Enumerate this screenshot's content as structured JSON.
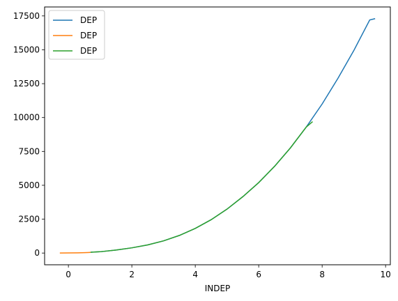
{
  "chart_data": {
    "type": "line",
    "title": "",
    "xlabel": "INDEP",
    "ylabel": "",
    "xlim": [
      -0.75,
      10.15
    ],
    "ylim": [
      -865,
      18160
    ],
    "xticks": [
      0,
      2,
      4,
      6,
      8,
      10
    ],
    "yticks": [
      0,
      2500,
      5000,
      7500,
      10000,
      12500,
      15000,
      17500
    ],
    "grid": false,
    "legend_position": "top-left",
    "series": [
      {
        "name": "DEP",
        "color": "#1f77b4",
        "x": [
          0.7,
          1.0,
          1.5,
          2.0,
          2.5,
          3.0,
          3.5,
          4.0,
          4.5,
          5.0,
          5.5,
          6.0,
          6.5,
          7.0,
          7.5,
          8.0,
          8.5,
          9.0,
          9.5,
          9.67
        ],
        "y": [
          58,
          96,
          220,
          385,
          600,
          900,
          1300,
          1820,
          2460,
          3240,
          4160,
          5200,
          6400,
          7760,
          9300,
          11000,
          12900,
          14950,
          17200,
          17300
        ]
      },
      {
        "name": "DEP",
        "color": "#ff7f0e",
        "x": [
          -0.27,
          0.0,
          0.3,
          0.5,
          0.7
        ],
        "y": [
          5,
          8,
          15,
          28,
          45
        ]
      },
      {
        "name": "DEP",
        "color": "#2ca02c",
        "x": [
          0.7,
          1.0,
          1.5,
          2.0,
          2.5,
          3.0,
          3.5,
          4.0,
          4.5,
          5.0,
          5.5,
          6.0,
          6.5,
          7.0,
          7.5,
          7.7
        ],
        "y": [
          58,
          96,
          220,
          385,
          600,
          900,
          1300,
          1820,
          2460,
          3240,
          4160,
          5200,
          6400,
          7760,
          9300,
          9700
        ]
      }
    ]
  }
}
